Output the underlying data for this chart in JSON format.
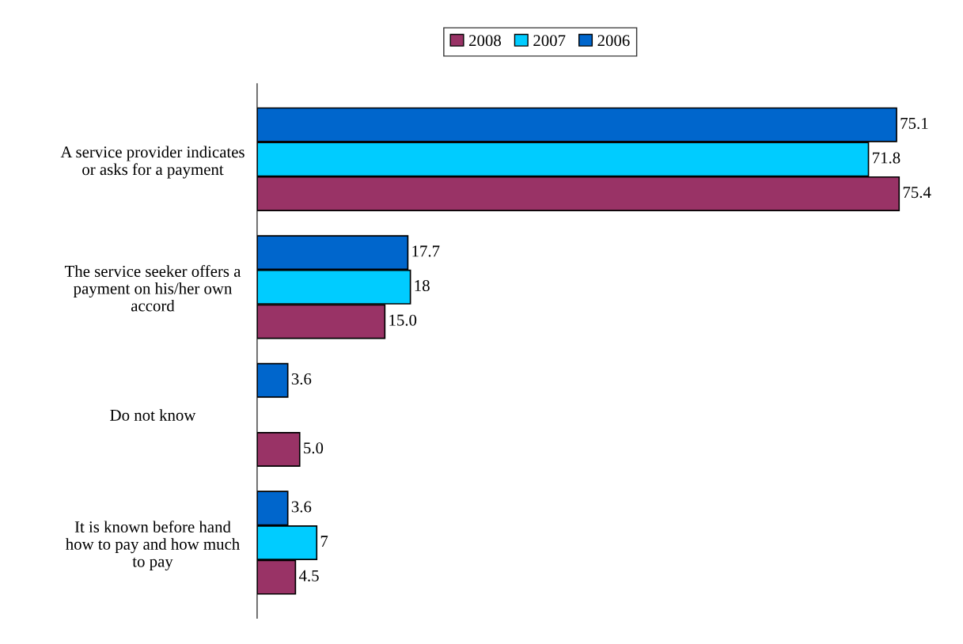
{
  "chart_data": {
    "type": "bar",
    "orientation": "horizontal",
    "relative": false,
    "categories": [
      "A service provider indicates\nor asks for a payment",
      "The service seeker offers a\npayment on his/her own\naccord",
      "Do not know",
      "It is known before hand\nhow to pay and how much\nto pay"
    ],
    "series": [
      {
        "name": "2008",
        "color": "#993366",
        "values": [
          75.4,
          15.0,
          5.0,
          4.5
        ],
        "value_labels": [
          "75.4",
          "15.0",
          "5.0",
          "4.5"
        ]
      },
      {
        "name": "2007",
        "color": "#00ccff",
        "values": [
          71.8,
          18,
          null,
          7
        ],
        "value_labels": [
          "71.8",
          "18",
          null,
          "7"
        ]
      },
      {
        "name": "2006",
        "color": "#0066cc",
        "values": [
          75.1,
          17.7,
          3.6,
          3.6
        ],
        "value_labels": [
          "75.1",
          "17.7",
          "3.6",
          "3.6"
        ]
      }
    ],
    "legend": "top",
    "grid": false
  }
}
